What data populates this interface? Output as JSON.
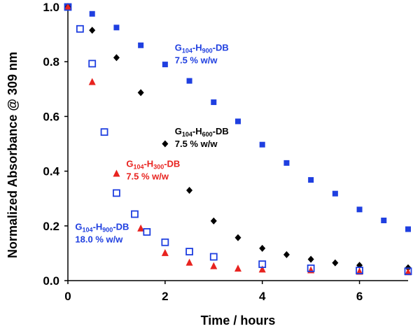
{
  "chart_data": {
    "type": "scatter",
    "title": "",
    "xlabel": "Time / hours",
    "ylabel": "Normalized Absorbance @ 309 nm",
    "xlim": [
      0,
      7
    ],
    "ylim": [
      0,
      1.0
    ],
    "x_ticks": [
      "0",
      "2",
      "4",
      "6"
    ],
    "y_ticks": [
      "0.0",
      "0.2",
      "0.4",
      "0.6",
      "0.8",
      "1.0"
    ],
    "grid": false,
    "legend": "none",
    "series": [
      {
        "marker": "filled-square",
        "color": "#1f3fe0",
        "points": [
          [
            0,
            1.0
          ],
          [
            0.5,
            0.975
          ],
          [
            1,
            0.925
          ],
          [
            1.5,
            0.86
          ],
          [
            2,
            0.79
          ],
          [
            2.5,
            0.73
          ],
          [
            3,
            0.652
          ],
          [
            3.5,
            0.582
          ],
          [
            4,
            0.497
          ],
          [
            4.5,
            0.43
          ],
          [
            5,
            0.368
          ],
          [
            5.5,
            0.318
          ],
          [
            6,
            0.26
          ],
          [
            6.5,
            0.22
          ],
          [
            7,
            0.188
          ]
        ]
      },
      {
        "marker": "filled-diamond",
        "color": "#000000",
        "points": [
          [
            0,
            1.0
          ],
          [
            0.5,
            0.915
          ],
          [
            1,
            0.815
          ],
          [
            1.5,
            0.687
          ],
          [
            2,
            0.5
          ],
          [
            2.5,
            0.33
          ],
          [
            3,
            0.218
          ],
          [
            3.5,
            0.157
          ],
          [
            4,
            0.118
          ],
          [
            4.5,
            0.095
          ],
          [
            5,
            0.078
          ],
          [
            5.5,
            0.065
          ],
          [
            6,
            0.056
          ],
          [
            7,
            0.047
          ]
        ]
      },
      {
        "marker": "filled-triangle",
        "color": "#e8231f",
        "points": [
          [
            0,
            1.0
          ],
          [
            0.5,
            0.725
          ],
          [
            1,
            0.39
          ],
          [
            1.5,
            0.19
          ],
          [
            2,
            0.1
          ],
          [
            2.5,
            0.065
          ],
          [
            3,
            0.052
          ],
          [
            3.5,
            0.043
          ],
          [
            4,
            0.04
          ],
          [
            5,
            0.037
          ],
          [
            6,
            0.032
          ],
          [
            7,
            0.03
          ]
        ]
      },
      {
        "marker": "open-square",
        "color": "#1f3fe0",
        "points": [
          [
            0,
            1.0
          ],
          [
            0.25,
            0.92
          ],
          [
            0.5,
            0.793
          ],
          [
            0.75,
            0.543
          ],
          [
            1,
            0.32
          ],
          [
            1.375,
            0.243
          ],
          [
            1.625,
            0.178
          ],
          [
            2,
            0.14
          ],
          [
            2.5,
            0.106
          ],
          [
            3,
            0.087
          ],
          [
            4,
            0.06
          ],
          [
            5,
            0.045
          ],
          [
            6,
            0.037
          ],
          [
            7,
            0.034
          ]
        ]
      }
    ],
    "annotations": [
      {
        "color": "#1f3fe0",
        "label": {
          "main": "G",
          "sub1": "104",
          "mid": "-H",
          "sub2": "900",
          "end": "-DB"
        },
        "conc": "7.5 % w/w",
        "at": [
          2.2,
          0.84
        ]
      },
      {
        "color": "#000000",
        "label": {
          "main": "G",
          "sub1": "104",
          "mid": "-H",
          "sub2": "600",
          "end": "-DB"
        },
        "conc": "7.5 % w/w",
        "at": [
          2.2,
          0.535
        ]
      },
      {
        "color": "#e8231f",
        "label": {
          "main": "G",
          "sub1": "104",
          "mid": "-H",
          "sub2": "300",
          "end": "-DB"
        },
        "conc": "7.5 % w/w",
        "at": [
          1.2,
          0.415
        ]
      },
      {
        "color": "#1f3fe0",
        "label": {
          "main": "G",
          "sub1": "104",
          "mid": "-H",
          "sub2": "900",
          "end": "-DB"
        },
        "conc": "18.0 % w/w",
        "at": [
          0.15,
          0.185
        ]
      }
    ]
  }
}
